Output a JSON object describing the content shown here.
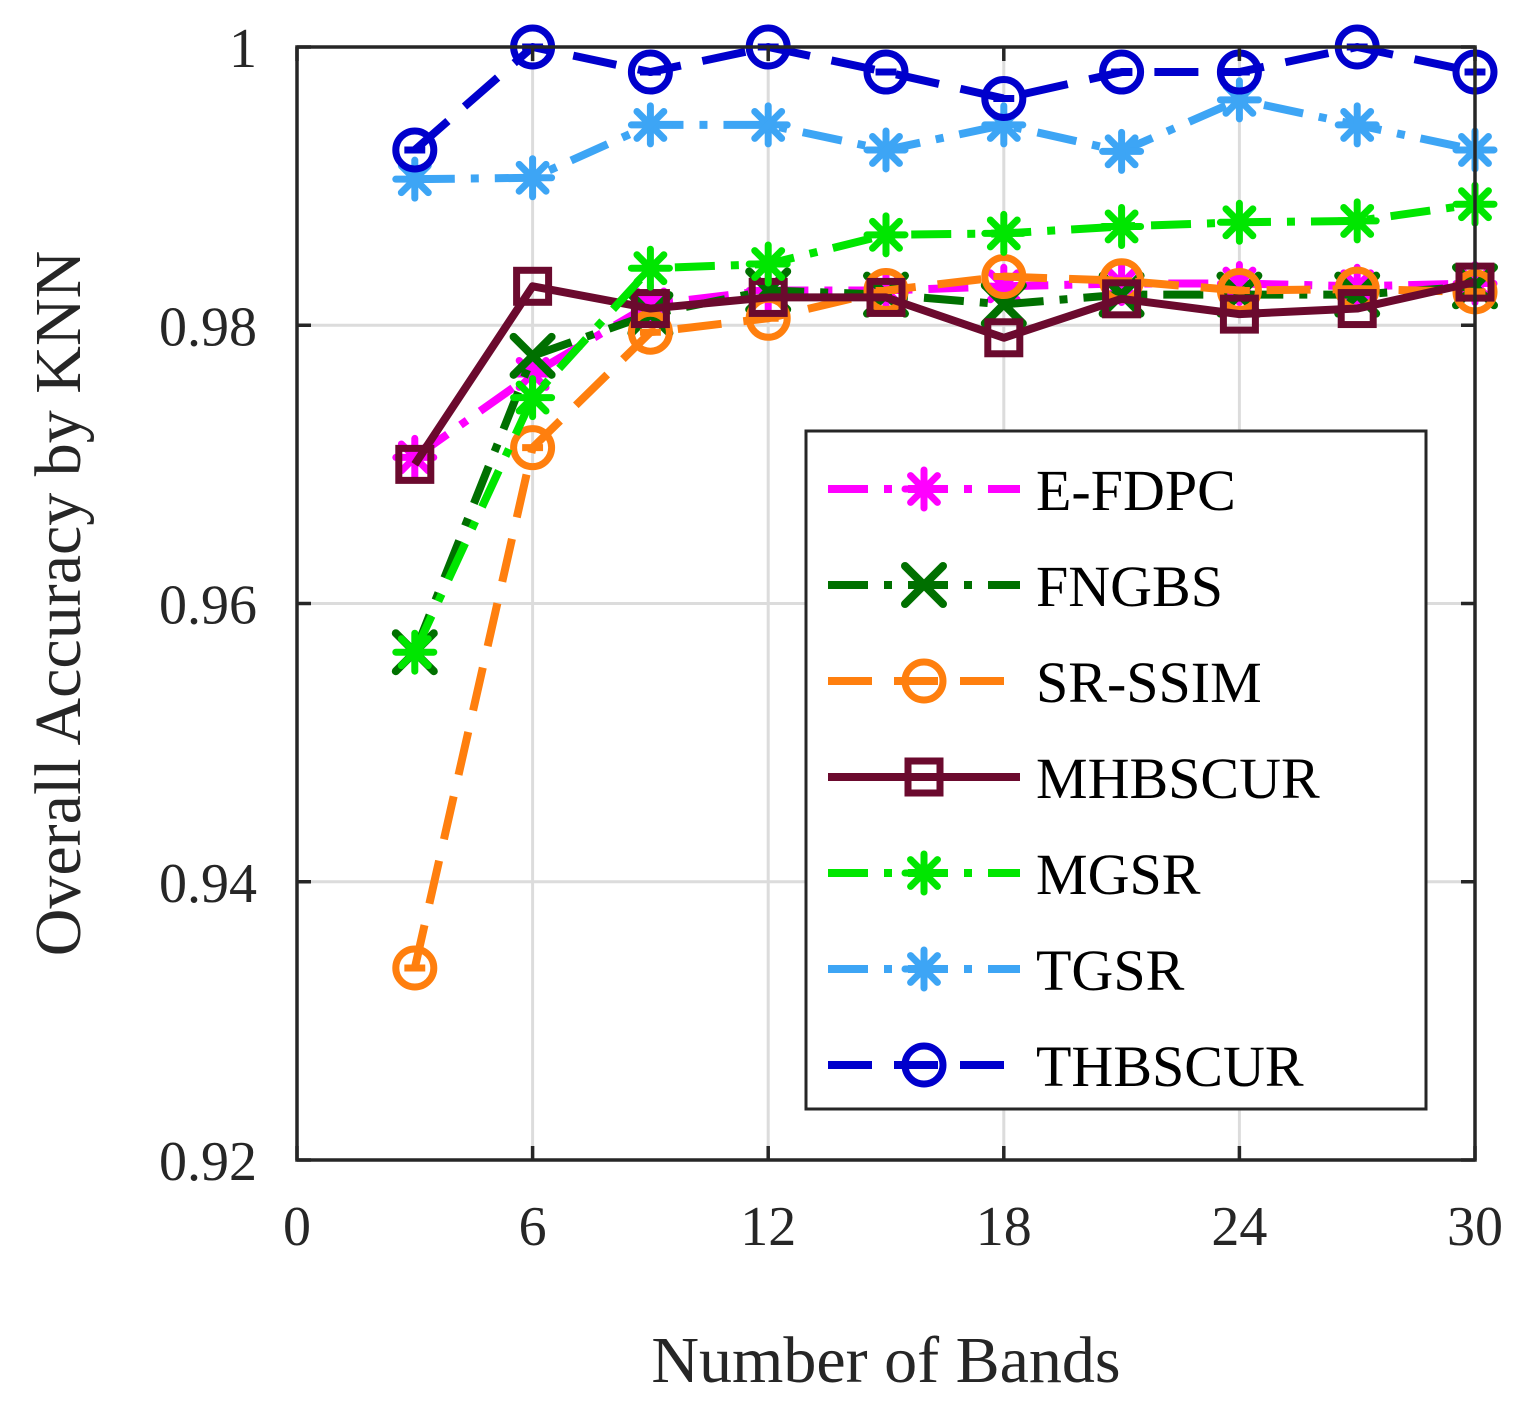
{
  "chart_data": {
    "type": "line",
    "title": "",
    "xlabel": "Number of Bands",
    "ylabel": "Overall Accuracy by KNN",
    "xlim": [
      0,
      30
    ],
    "ylim": [
      0.92,
      1.0
    ],
    "xticks": [
      0,
      6,
      12,
      18,
      24,
      30
    ],
    "xtick_labels": [
      "0",
      "6",
      "12",
      "18",
      "24",
      "30"
    ],
    "yticks": [
      0.92,
      0.94,
      0.96,
      0.98,
      1.0
    ],
    "ytick_labels": [
      "0.92",
      "0.94",
      "0.96",
      "0.98",
      "1"
    ],
    "grid": true,
    "legend_position": "center-right",
    "x": [
      3,
      6,
      9,
      12,
      15,
      18,
      21,
      24,
      27,
      30
    ],
    "series": [
      {
        "name": "E-FDPC",
        "color": "#ff00ff",
        "dash": "dashdot",
        "marker": "asterisk",
        "values": [
          0.9705,
          0.9765,
          0.9815,
          0.9825,
          0.9825,
          0.9828,
          0.983,
          0.983,
          0.9828,
          0.983
        ]
      },
      {
        "name": "FNGBS",
        "color": "#007000",
        "dash": "dashdot",
        "marker": "x",
        "values": [
          0.9565,
          0.9778,
          0.9808,
          0.9825,
          0.9822,
          0.9815,
          0.9822,
          0.9822,
          0.9822,
          0.9828
        ]
      },
      {
        "name": "SR-SSIM",
        "color": "#ff7f0e",
        "dash": "dashed",
        "marker": "circle-bar",
        "values": [
          0.9338,
          0.9712,
          0.9795,
          0.9805,
          0.9825,
          0.9835,
          0.9832,
          0.9825,
          0.9826,
          0.9824
        ]
      },
      {
        "name": "MHBSCUR",
        "color": "#6b0a2e",
        "dash": "solid",
        "marker": "square",
        "values": [
          0.97,
          0.9828,
          0.9812,
          0.982,
          0.982,
          0.9791,
          0.9819,
          0.9808,
          0.9812,
          0.9831
        ]
      },
      {
        "name": "MGSR",
        "color": "#00e600",
        "dash": "dashdot",
        "marker": "asterisk",
        "values": [
          0.9565,
          0.9748,
          0.9841,
          0.9844,
          0.9865,
          0.9866,
          0.9871,
          0.9874,
          0.9875,
          0.9887
        ]
      },
      {
        "name": "TGSR",
        "color": "#3da5f5",
        "dash": "dashdot",
        "marker": "asterisk",
        "values": [
          0.9905,
          0.9906,
          0.9944,
          0.9944,
          0.9926,
          0.9944,
          0.9925,
          0.9962,
          0.9944,
          0.9926
        ]
      },
      {
        "name": "THBSCUR",
        "color": "#0000cc",
        "dash": "dashed",
        "marker": "circle-bar",
        "values": [
          0.9926,
          1.0,
          0.9982,
          1.0,
          0.9982,
          0.9963,
          0.9982,
          0.9982,
          1.0,
          0.9982
        ]
      }
    ]
  }
}
